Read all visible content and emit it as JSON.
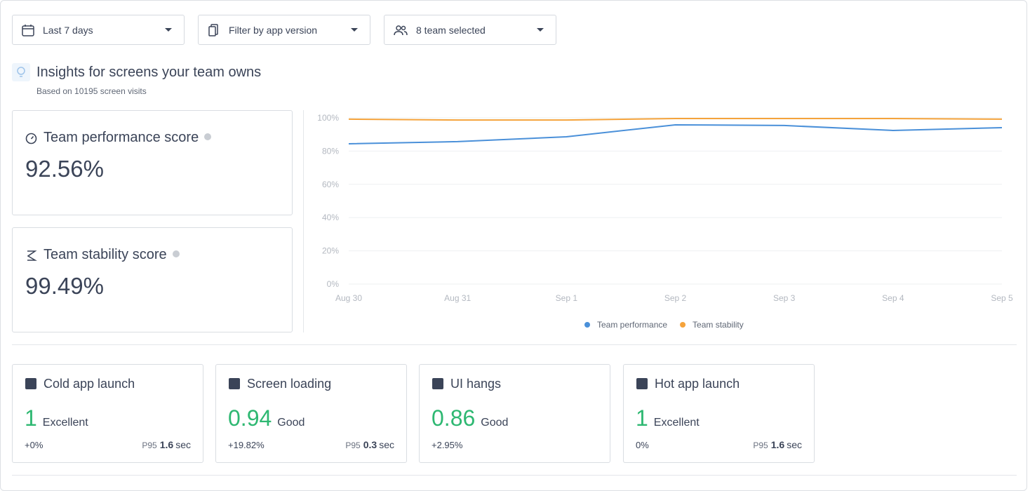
{
  "filters": [
    {
      "label": "Last 7 days"
    },
    {
      "label": "Filter by app version"
    },
    {
      "label": "8 team selected"
    }
  ],
  "header": {
    "title": "Insights for screens your team owns",
    "subtitle": "Based on 10195 screen visits"
  },
  "scores": [
    {
      "title": "Team performance score",
      "value": "92.56%"
    },
    {
      "title": "Team stability score",
      "value": "99.49%"
    }
  ],
  "chart_data": {
    "type": "line",
    "x": [
      "Aug 30",
      "Aug 31",
      "Sep 1",
      "Sep 2",
      "Sep 3",
      "Sep 4",
      "Sep 5"
    ],
    "series": [
      {
        "name": "Team performance",
        "color": "#4a90d9",
        "values": [
          84.4,
          85.7,
          88.6,
          95.8,
          95.4,
          92.4,
          94.1
        ]
      },
      {
        "name": "Team stability",
        "color": "#f5a33b",
        "values": [
          99.2,
          98.7,
          98.7,
          99.6,
          99.6,
          99.6,
          99.2
        ]
      }
    ],
    "ylim": [
      0,
      100
    ],
    "yticks": [
      {
        "value": 0,
        "label": "0%"
      },
      {
        "value": 20,
        "label": "20%"
      },
      {
        "value": 40,
        "label": "40%"
      },
      {
        "value": 60,
        "label": "60%"
      },
      {
        "value": 80,
        "label": "80%"
      },
      {
        "value": 100,
        "label": "100%"
      }
    ],
    "grid": true,
    "legend": "bottom"
  },
  "metrics": [
    {
      "title": "Cold app launch",
      "score": "1",
      "rating": "Excellent",
      "change": "+0%",
      "p95_label": "P95",
      "p95_value": "1.6",
      "p95_unit": "sec"
    },
    {
      "title": "Screen loading",
      "score": "0.94",
      "rating": "Good",
      "change": "+19.82%",
      "p95_label": "P95",
      "p95_value": "0.3",
      "p95_unit": "sec"
    },
    {
      "title": "UI hangs",
      "score": "0.86",
      "rating": "Good",
      "change": "+2.95%"
    },
    {
      "title": "Hot app launch",
      "score": "1",
      "rating": "Excellent",
      "change": "0%",
      "p95_label": "P95",
      "p95_value": "1.6",
      "p95_unit": "sec"
    }
  ]
}
